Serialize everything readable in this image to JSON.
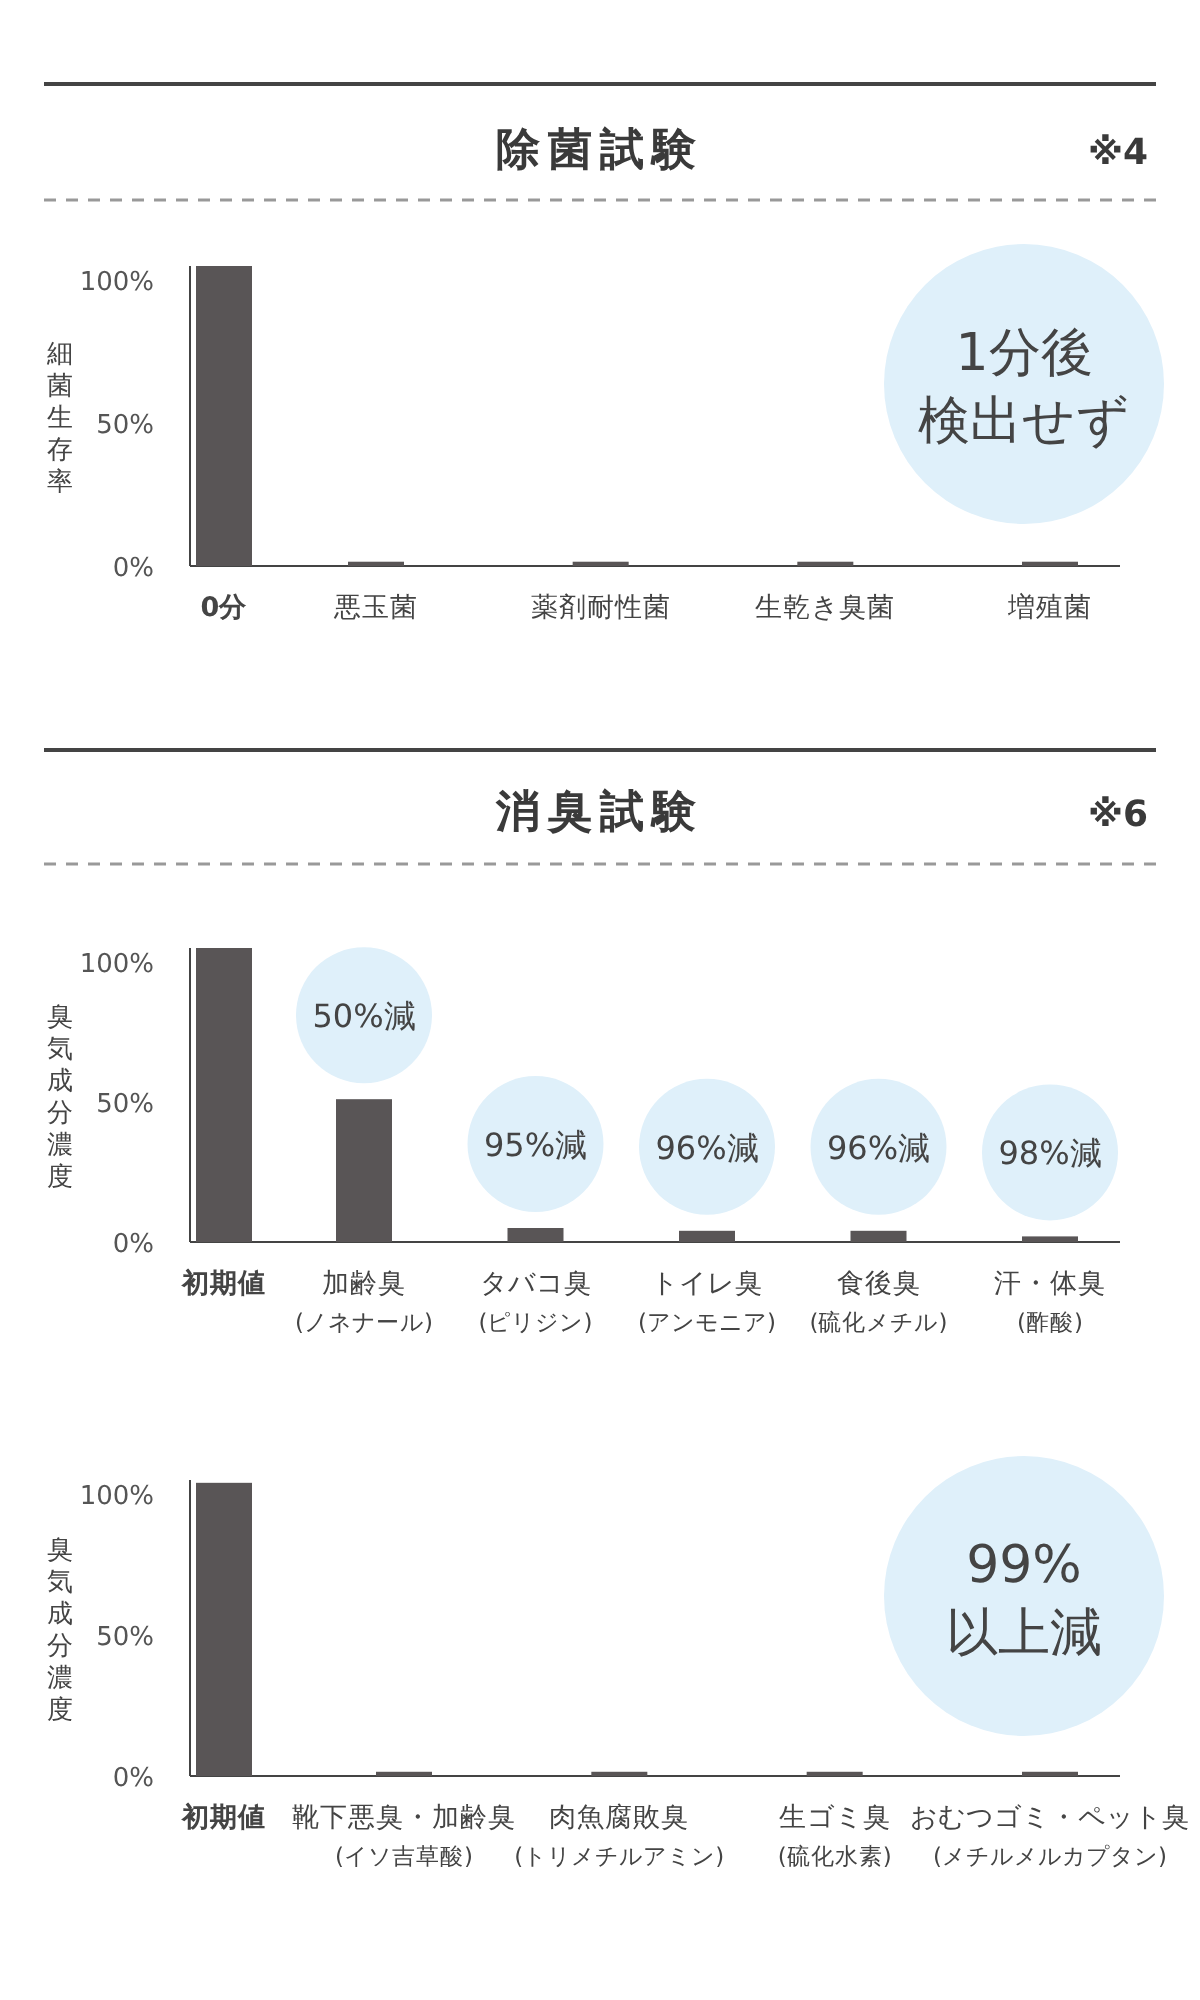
{
  "chart_data": [
    {
      "type": "bar",
      "title": "除菌試験",
      "subtitle": "※4",
      "ylabel": "細菌生存率",
      "categories": [
        "0分",
        "悪玉菌",
        "薬剤耐性菌",
        "生乾き臭菌",
        "増殖菌"
      ],
      "values": [
        105,
        1.5,
        1.5,
        1.5,
        1.5
      ],
      "color": "#595556",
      "ylim": [
        0,
        105
      ],
      "yticks": [
        {
          "value": 0,
          "label": "0%"
        },
        {
          "value": 50,
          "label": "50%"
        },
        {
          "value": 100,
          "label": "100%"
        }
      ],
      "annotations": [
        "1分後",
        "検出せず"
      ]
    },
    {
      "type": "bar",
      "title": "消臭試験",
      "subtitle": "※6",
      "ylabel": "臭気成分濃度",
      "categories": [
        "初期値",
        "加齢臭\n(ノネナール)",
        "タバコ臭\n(ピリジン)",
        "トイレ臭\n(アンモニア)",
        "食後臭\n(硫化メチル)",
        "汗・体臭\n(酢酸)"
      ],
      "values": [
        105,
        51,
        5,
        4,
        4,
        2
      ],
      "color": "#595556",
      "ylim": [
        0,
        105
      ],
      "yticks": [
        {
          "value": 0,
          "label": "0%"
        },
        {
          "value": 50,
          "label": "50%"
        },
        {
          "value": 100,
          "label": "100%"
        }
      ],
      "annotations": [
        {
          "text": "50%減",
          "x": "加齢臭\n(ノネナール)",
          "y": 51
        },
        {
          "text": "95%減",
          "x": "タバコ臭\n(ピリジン)",
          "y": 5
        },
        {
          "text": "96%減",
          "x": "トイレ臭\n(アンモニア)",
          "y": 4
        },
        {
          "text": "96%減",
          "x": "食後臭\n(硫化メチル)",
          "y": 4
        },
        {
          "text": "98%減",
          "x": "汗・体臭\n(酢酸)",
          "y": 2
        }
      ]
    },
    {
      "type": "bar",
      "ylabel": "臭気成分濃度",
      "categories": [
        "初期値",
        "靴下悪臭・加齢臭\n(イソ吉草酸)",
        "肉魚腐敗臭\n(トリメチルアミン)",
        "生ゴミ臭\n(硫化水素)",
        "おむつゴミ・ペット臭\n(メチルメルカプタン)"
      ],
      "values": [
        104,
        1.5,
        1.5,
        1.5,
        1.5
      ],
      "color": "#595556",
      "ylim": [
        0,
        105
      ],
      "yticks": [
        {
          "value": 0,
          "label": "0%"
        },
        {
          "value": 50,
          "label": "50%"
        },
        {
          "value": 100,
          "label": "100%"
        }
      ],
      "annotations": [
        "99%",
        "以上減"
      ]
    }
  ]
}
